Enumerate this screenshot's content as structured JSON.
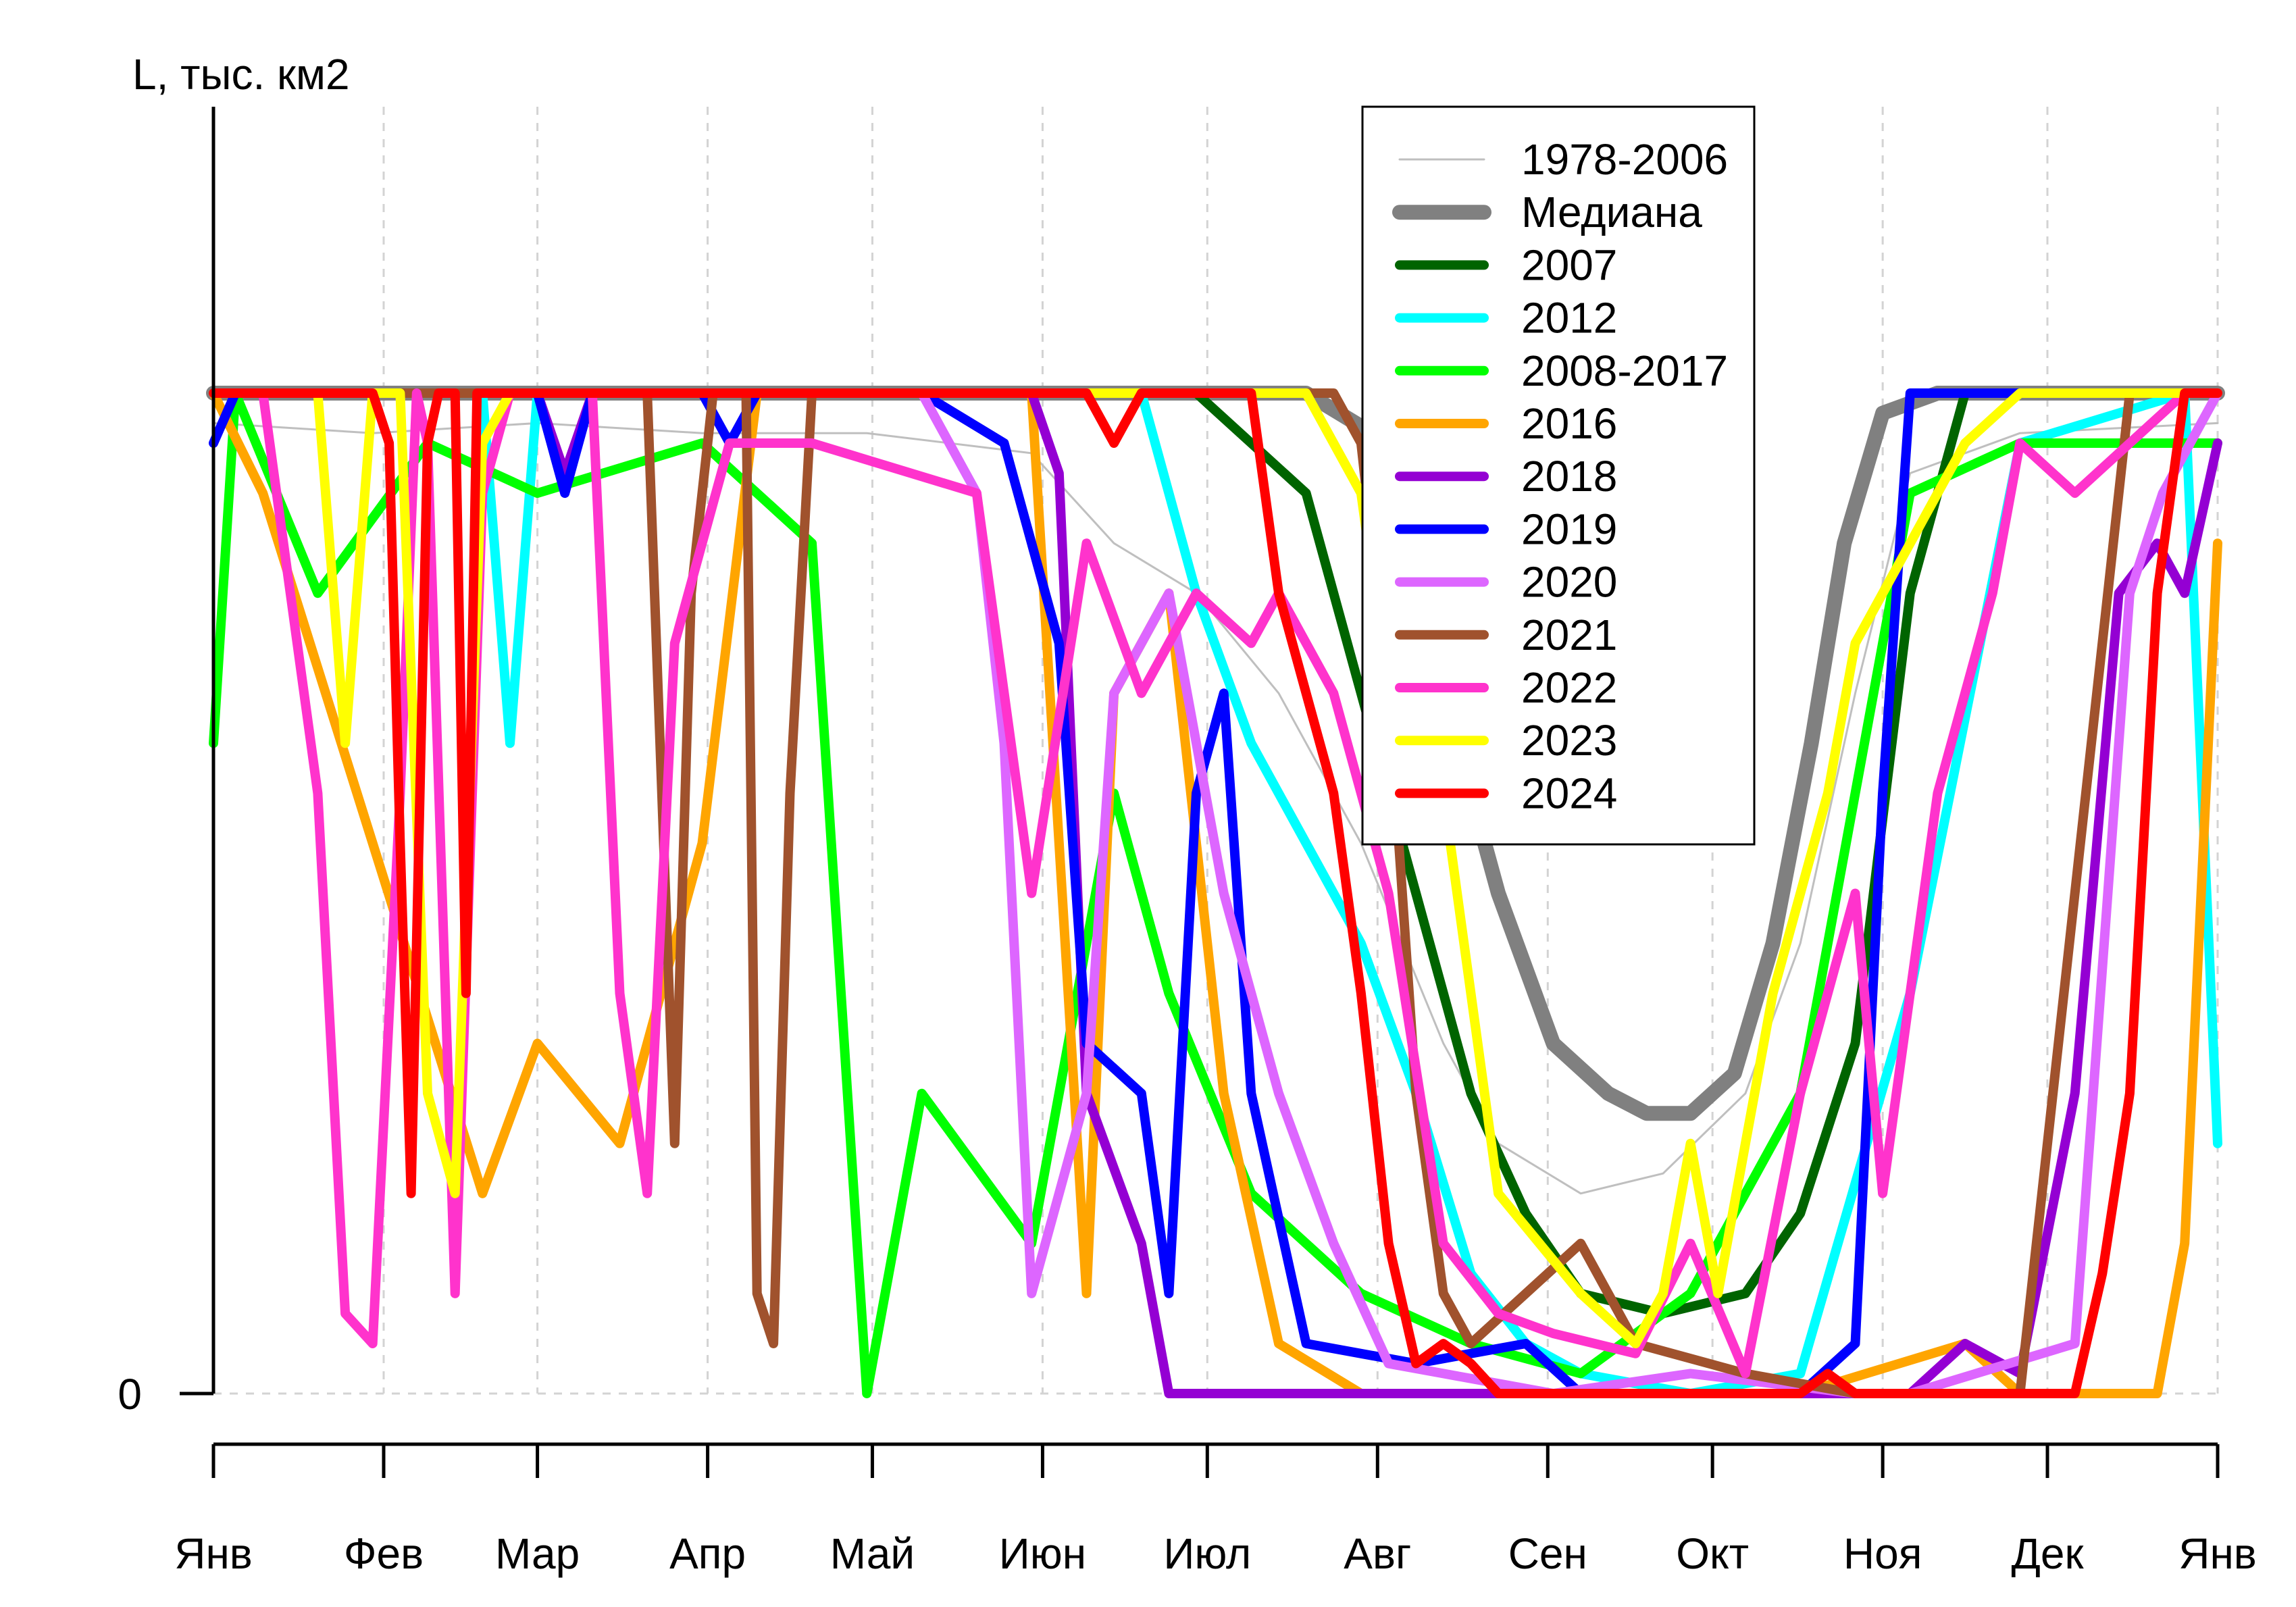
{
  "chart_data": {
    "type": "line",
    "title": "",
    "ylabel": "L, тыс. км2",
    "xlabel": "",
    "x_ticks": [
      "Янв",
      "Фев",
      "Мар",
      "Апр",
      "Май",
      "Июн",
      "Июл",
      "Авг",
      "Сен",
      "Окт",
      "Ноя",
      "Дек",
      "Янв"
    ],
    "y_ticks": [
      "0"
    ],
    "x_range_days": [
      1,
      366
    ],
    "y_range_fraction": [
      0,
      1.0
    ],
    "grid": true,
    "legend_position": "top-center",
    "colors": {
      "hist": "#bfbfbf",
      "median": "#808080",
      "y2007": "#006400",
      "y2012": "#00ffff",
      "y2008_2017": "#00ff00",
      "y2016": "#ffa500",
      "y2018": "#9400d3",
      "y2019": "#0000ff",
      "y2020": "#dd66ff",
      "y2021": "#a0522d",
      "y2022": "#ff33cc",
      "y2023": "#ffff00",
      "y2024": "#ff0000"
    },
    "series": [
      {
        "name": "1978-2006",
        "color": "#bfbfbf",
        "values": [
          [
            1,
            0.97
          ],
          [
            30,
            0.96
          ],
          [
            60,
            0.97
          ],
          [
            90,
            0.96
          ],
          [
            120,
            0.96
          ],
          [
            150,
            0.94
          ],
          [
            165,
            0.85
          ],
          [
            180,
            0.8
          ],
          [
            195,
            0.7
          ],
          [
            210,
            0.55
          ],
          [
            225,
            0.35
          ],
          [
            235,
            0.25
          ],
          [
            250,
            0.2
          ],
          [
            265,
            0.22
          ],
          [
            280,
            0.3
          ],
          [
            290,
            0.45
          ],
          [
            300,
            0.7
          ],
          [
            310,
            0.92
          ],
          [
            330,
            0.96
          ],
          [
            366,
            0.97
          ]
        ]
      },
      {
        "name": "Медиана",
        "color": "#808080",
        "values": [
          [
            1,
            1.0
          ],
          [
            200,
            1.0
          ],
          [
            215,
            0.95
          ],
          [
            225,
            0.7
          ],
          [
            235,
            0.5
          ],
          [
            245,
            0.35
          ],
          [
            255,
            0.3
          ],
          [
            262,
            0.28
          ],
          [
            270,
            0.28
          ],
          [
            278,
            0.32
          ],
          [
            285,
            0.45
          ],
          [
            292,
            0.65
          ],
          [
            298,
            0.85
          ],
          [
            305,
            0.98
          ],
          [
            315,
            1.0
          ],
          [
            366,
            1.0
          ]
        ]
      },
      {
        "name": "2007",
        "color": "#006400",
        "values": [
          [
            1,
            1.0
          ],
          [
            180,
            1.0
          ],
          [
            190,
            0.95
          ],
          [
            200,
            0.9
          ],
          [
            210,
            0.7
          ],
          [
            220,
            0.5
          ],
          [
            230,
            0.3
          ],
          [
            240,
            0.18
          ],
          [
            250,
            0.1
          ],
          [
            265,
            0.08
          ],
          [
            280,
            0.1
          ],
          [
            290,
            0.18
          ],
          [
            300,
            0.35
          ],
          [
            310,
            0.8
          ],
          [
            320,
            1.0
          ],
          [
            366,
            1.0
          ]
        ]
      },
      {
        "name": "2012",
        "color": "#00ffff",
        "values": [
          [
            1,
            1.0
          ],
          [
            50,
            1.0
          ],
          [
            55,
            0.65
          ],
          [
            60,
            1.0
          ],
          [
            170,
            1.0
          ],
          [
            180,
            0.8
          ],
          [
            190,
            0.65
          ],
          [
            200,
            0.55
          ],
          [
            210,
            0.45
          ],
          [
            220,
            0.3
          ],
          [
            230,
            0.12
          ],
          [
            240,
            0.05
          ],
          [
            250,
            0.02
          ],
          [
            270,
            0.0
          ],
          [
            290,
            0.02
          ],
          [
            310,
            0.4
          ],
          [
            330,
            0.95
          ],
          [
            360,
            1.0
          ],
          [
            366,
            0.25
          ]
        ]
      },
      {
        "name": "2008-2017",
        "color": "#00ff00",
        "values": [
          [
            1,
            0.65
          ],
          [
            5,
            1.0
          ],
          [
            20,
            0.8
          ],
          [
            40,
            0.95
          ],
          [
            60,
            0.9
          ],
          [
            90,
            0.95
          ],
          [
            110,
            0.85
          ],
          [
            120,
            0.0
          ],
          [
            130,
            0.3
          ],
          [
            150,
            0.15
          ],
          [
            165,
            0.6
          ],
          [
            175,
            0.4
          ],
          [
            190,
            0.2
          ],
          [
            210,
            0.1
          ],
          [
            230,
            0.05
          ],
          [
            250,
            0.02
          ],
          [
            270,
            0.1
          ],
          [
            290,
            0.3
          ],
          [
            300,
            0.6
          ],
          [
            310,
            0.9
          ],
          [
            330,
            0.95
          ],
          [
            366,
            0.95
          ]
        ]
      },
      {
        "name": "2016",
        "color": "#ffa500",
        "values": [
          [
            1,
            1.0
          ],
          [
            10,
            0.9
          ],
          [
            50,
            0.2
          ],
          [
            60,
            0.35
          ],
          [
            75,
            0.25
          ],
          [
            90,
            0.55
          ],
          [
            100,
            1.0
          ],
          [
            150,
            1.0
          ],
          [
            160,
            0.1
          ],
          [
            165,
            0.7
          ],
          [
            175,
            0.8
          ],
          [
            185,
            0.3
          ],
          [
            195,
            0.05
          ],
          [
            210,
            0.0
          ],
          [
            290,
            0.0
          ],
          [
            320,
            0.05
          ],
          [
            330,
            0.0
          ],
          [
            345,
            0.0
          ],
          [
            355,
            0.0
          ],
          [
            360,
            0.15
          ],
          [
            366,
            0.85
          ]
        ]
      },
      {
        "name": "2018",
        "color": "#9400d3",
        "values": [
          [
            1,
            1.0
          ],
          [
            60,
            1.0
          ],
          [
            65,
            0.92
          ],
          [
            70,
            1.0
          ],
          [
            150,
            1.0
          ],
          [
            155,
            0.92
          ],
          [
            160,
            0.3
          ],
          [
            170,
            0.15
          ],
          [
            175,
            0.0
          ],
          [
            290,
            0.0
          ],
          [
            310,
            0.0
          ],
          [
            320,
            0.05
          ],
          [
            330,
            0.02
          ],
          [
            340,
            0.3
          ],
          [
            348,
            0.8
          ],
          [
            355,
            0.85
          ],
          [
            360,
            0.8
          ],
          [
            366,
            0.95
          ]
        ]
      },
      {
        "name": "2019",
        "color": "#0000ff",
        "values": [
          [
            1,
            0.95
          ],
          [
            5,
            1.0
          ],
          [
            60,
            1.0
          ],
          [
            65,
            0.9
          ],
          [
            70,
            1.0
          ],
          [
            90,
            1.0
          ],
          [
            95,
            0.95
          ],
          [
            100,
            1.0
          ],
          [
            130,
            1.0
          ],
          [
            145,
            0.95
          ],
          [
            155,
            0.75
          ],
          [
            160,
            0.35
          ],
          [
            170,
            0.3
          ],
          [
            175,
            0.1
          ],
          [
            180,
            0.6
          ],
          [
            185,
            0.7
          ],
          [
            190,
            0.3
          ],
          [
            200,
            0.05
          ],
          [
            220,
            0.03
          ],
          [
            240,
            0.05
          ],
          [
            250,
            0.0
          ],
          [
            290,
            0.0
          ],
          [
            300,
            0.05
          ],
          [
            305,
            0.6
          ],
          [
            310,
            1.0
          ],
          [
            366,
            1.0
          ]
        ]
      },
      {
        "name": "2020",
        "color": "#dd66ff",
        "values": [
          [
            1,
            1.0
          ],
          [
            130,
            1.0
          ],
          [
            140,
            0.9
          ],
          [
            145,
            0.65
          ],
          [
            150,
            0.1
          ],
          [
            160,
            0.3
          ],
          [
            165,
            0.7
          ],
          [
            175,
            0.8
          ],
          [
            185,
            0.5
          ],
          [
            195,
            0.3
          ],
          [
            205,
            0.15
          ],
          [
            215,
            0.03
          ],
          [
            225,
            0.02
          ],
          [
            245,
            0.0
          ],
          [
            270,
            0.02
          ],
          [
            300,
            0.0
          ],
          [
            310,
            0.0
          ],
          [
            340,
            0.05
          ],
          [
            350,
            0.8
          ],
          [
            356,
            0.9
          ],
          [
            366,
            1.0
          ]
        ]
      },
      {
        "name": "2021",
        "color": "#a0522d",
        "values": [
          [
            1,
            1.0
          ],
          [
            80,
            1.0
          ],
          [
            82,
            0.7
          ],
          [
            85,
            0.25
          ],
          [
            88,
            0.8
          ],
          [
            92,
            1.0
          ],
          [
            98,
            1.0
          ],
          [
            100,
            0.1
          ],
          [
            103,
            0.05
          ],
          [
            106,
            0.6
          ],
          [
            110,
            1.0
          ],
          [
            205,
            1.0
          ],
          [
            210,
            0.95
          ],
          [
            215,
            0.7
          ],
          [
            220,
            0.3
          ],
          [
            225,
            0.1
          ],
          [
            230,
            0.05
          ],
          [
            240,
            0.1
          ],
          [
            250,
            0.15
          ],
          [
            260,
            0.05
          ],
          [
            280,
            0.02
          ],
          [
            300,
            0.0
          ],
          [
            330,
            0.0
          ],
          [
            350,
            1.0
          ],
          [
            366,
            1.0
          ]
        ]
      },
      {
        "name": "2022",
        "color": "#ff33cc",
        "values": [
          [
            1,
            1.0
          ],
          [
            10,
            1.0
          ],
          [
            20,
            0.6
          ],
          [
            25,
            0.08
          ],
          [
            30,
            0.05
          ],
          [
            35,
            0.6
          ],
          [
            38,
            1.0
          ],
          [
            40,
            0.95
          ],
          [
            45,
            0.1
          ],
          [
            50,
            0.9
          ],
          [
            55,
            1.0
          ],
          [
            70,
            1.0
          ],
          [
            75,
            0.4
          ],
          [
            80,
            0.2
          ],
          [
            85,
            0.75
          ],
          [
            95,
            0.95
          ],
          [
            110,
            0.95
          ],
          [
            140,
            0.9
          ],
          [
            150,
            0.5
          ],
          [
            160,
            0.85
          ],
          [
            170,
            0.7
          ],
          [
            180,
            0.8
          ],
          [
            190,
            0.75
          ],
          [
            195,
            0.8
          ],
          [
            205,
            0.7
          ],
          [
            215,
            0.5
          ],
          [
            225,
            0.15
          ],
          [
            235,
            0.08
          ],
          [
            245,
            0.06
          ],
          [
            260,
            0.04
          ],
          [
            270,
            0.15
          ],
          [
            280,
            0.02
          ],
          [
            290,
            0.3
          ],
          [
            300,
            0.5
          ],
          [
            305,
            0.2
          ],
          [
            315,
            0.6
          ],
          [
            325,
            0.8
          ],
          [
            330,
            0.95
          ],
          [
            340,
            0.9
          ],
          [
            350,
            0.95
          ],
          [
            360,
            1.0
          ],
          [
            366,
            1.0
          ]
        ]
      },
      {
        "name": "2023",
        "color": "#ffff00",
        "values": [
          [
            1,
            1.0
          ],
          [
            20,
            1.0
          ],
          [
            25,
            0.65
          ],
          [
            30,
            1.0
          ],
          [
            35,
            1.0
          ],
          [
            40,
            0.3
          ],
          [
            45,
            0.2
          ],
          [
            50,
            0.95
          ],
          [
            55,
            1.0
          ],
          [
            200,
            1.0
          ],
          [
            210,
            0.9
          ],
          [
            215,
            0.7
          ],
          [
            220,
            0.8
          ],
          [
            235,
            0.2
          ],
          [
            250,
            0.1
          ],
          [
            260,
            0.05
          ],
          [
            265,
            0.1
          ],
          [
            270,
            0.25
          ],
          [
            275,
            0.1
          ],
          [
            285,
            0.4
          ],
          [
            295,
            0.6
          ],
          [
            300,
            0.75
          ],
          [
            310,
            0.85
          ],
          [
            320,
            0.95
          ],
          [
            330,
            1.0
          ],
          [
            366,
            1.0
          ]
        ]
      },
      {
        "name": "2024",
        "color": "#ff0000",
        "values": [
          [
            1,
            1.0
          ],
          [
            30,
            1.0
          ],
          [
            33,
            0.95
          ],
          [
            35,
            0.55
          ],
          [
            37,
            0.2
          ],
          [
            40,
            0.95
          ],
          [
            42,
            1.0
          ],
          [
            45,
            1.0
          ],
          [
            47,
            0.4
          ],
          [
            49,
            1.0
          ],
          [
            160,
            1.0
          ],
          [
            165,
            0.95
          ],
          [
            170,
            1.0
          ],
          [
            190,
            1.0
          ],
          [
            195,
            0.8
          ],
          [
            200,
            0.7
          ],
          [
            205,
            0.6
          ],
          [
            210,
            0.4
          ],
          [
            215,
            0.15
          ],
          [
            220,
            0.03
          ],
          [
            225,
            0.05
          ],
          [
            230,
            0.03
          ],
          [
            235,
            0.0
          ],
          [
            290,
            0.0
          ],
          [
            295,
            0.02
          ],
          [
            300,
            0.0
          ],
          [
            340,
            0.0
          ],
          [
            345,
            0.12
          ],
          [
            350,
            0.3
          ],
          [
            355,
            0.8
          ],
          [
            360,
            1.0
          ],
          [
            366,
            1.0
          ]
        ]
      }
    ]
  }
}
